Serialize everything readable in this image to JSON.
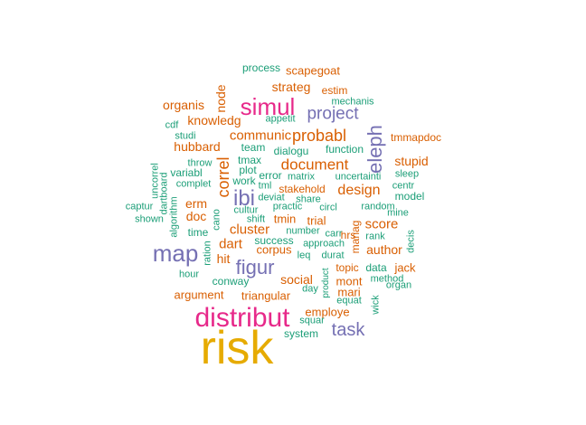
{
  "palette": {
    "teal": "#1b9e77",
    "orange": "#d95f02",
    "purple": "#7570b3",
    "magenta": "#e7298a",
    "gold": "#e6ab02"
  },
  "words": [
    {
      "text": "risk",
      "color": "gold"
    },
    {
      "text": "distribut",
      "color": "magenta"
    },
    {
      "text": "simul",
      "color": "magenta"
    },
    {
      "text": "map",
      "color": "purple"
    },
    {
      "text": "figur",
      "color": "purple"
    },
    {
      "text": "ibi",
      "color": "purple"
    },
    {
      "text": "project",
      "color": "purple"
    },
    {
      "text": "eleph",
      "color": "purple"
    },
    {
      "text": "task",
      "color": "purple"
    },
    {
      "text": "probabl",
      "color": "orange"
    },
    {
      "text": "document",
      "color": "orange"
    },
    {
      "text": "design",
      "color": "orange"
    },
    {
      "text": "correl",
      "color": "orange"
    },
    {
      "text": "strateg",
      "color": "orange"
    },
    {
      "text": "organis",
      "color": "orange"
    },
    {
      "text": "knowledg",
      "color": "orange"
    },
    {
      "text": "communic",
      "color": "orange"
    },
    {
      "text": "hubbard",
      "color": "orange"
    },
    {
      "text": "stupid",
      "color": "orange"
    },
    {
      "text": "cluster",
      "color": "orange"
    },
    {
      "text": "dart",
      "color": "orange"
    },
    {
      "text": "score",
      "color": "orange"
    },
    {
      "text": "author",
      "color": "orange"
    },
    {
      "text": "social",
      "color": "orange"
    },
    {
      "text": "doc",
      "color": "orange"
    },
    {
      "text": "erm",
      "color": "orange"
    },
    {
      "text": "hit",
      "color": "orange"
    },
    {
      "text": "argument",
      "color": "orange"
    },
    {
      "text": "triangular",
      "color": "orange"
    },
    {
      "text": "employe",
      "color": "orange"
    },
    {
      "text": "mont",
      "color": "orange"
    },
    {
      "text": "mari",
      "color": "orange"
    },
    {
      "text": "jack",
      "color": "orange"
    },
    {
      "text": "trial",
      "color": "orange"
    },
    {
      "text": "tmin",
      "color": "orange"
    },
    {
      "text": "corpus",
      "color": "orange"
    },
    {
      "text": "node",
      "color": "orange"
    },
    {
      "text": "estim",
      "color": "orange"
    },
    {
      "text": "scapegoat",
      "color": "orange"
    },
    {
      "text": "tmmapdoc",
      "color": "orange"
    },
    {
      "text": "stakehold",
      "color": "orange"
    },
    {
      "text": "topic",
      "color": "orange"
    },
    {
      "text": "hrs",
      "color": "orange"
    },
    {
      "text": "manag",
      "color": "orange"
    },
    {
      "text": "process",
      "color": "teal"
    },
    {
      "text": "mechanis",
      "color": "teal"
    },
    {
      "text": "appetit",
      "color": "teal"
    },
    {
      "text": "cdf",
      "color": "teal"
    },
    {
      "text": "studi",
      "color": "teal"
    },
    {
      "text": "team",
      "color": "teal"
    },
    {
      "text": "dialogu",
      "color": "teal"
    },
    {
      "text": "function",
      "color": "teal"
    },
    {
      "text": "throw",
      "color": "teal"
    },
    {
      "text": "tmax",
      "color": "teal"
    },
    {
      "text": "plot",
      "color": "teal"
    },
    {
      "text": "error",
      "color": "teal"
    },
    {
      "text": "matrix",
      "color": "teal"
    },
    {
      "text": "uncertainti",
      "color": "teal"
    },
    {
      "text": "sleep",
      "color": "teal"
    },
    {
      "text": "variabl",
      "color": "teal"
    },
    {
      "text": "work",
      "color": "teal"
    },
    {
      "text": "tml",
      "color": "teal"
    },
    {
      "text": "centr",
      "color": "teal"
    },
    {
      "text": "uncorrel",
      "color": "teal"
    },
    {
      "text": "complet",
      "color": "teal"
    },
    {
      "text": "deviat",
      "color": "teal"
    },
    {
      "text": "share",
      "color": "teal"
    },
    {
      "text": "model",
      "color": "teal"
    },
    {
      "text": "dartboard",
      "color": "teal"
    },
    {
      "text": "captur",
      "color": "teal"
    },
    {
      "text": "cultur",
      "color": "teal"
    },
    {
      "text": "practic",
      "color": "teal"
    },
    {
      "text": "circl",
      "color": "teal"
    },
    {
      "text": "random",
      "color": "teal"
    },
    {
      "text": "shown",
      "color": "teal"
    },
    {
      "text": "algorithm",
      "color": "teal"
    },
    {
      "text": "cano",
      "color": "teal"
    },
    {
      "text": "shift",
      "color": "teal"
    },
    {
      "text": "mine",
      "color": "teal"
    },
    {
      "text": "time",
      "color": "teal"
    },
    {
      "text": "success",
      "color": "teal"
    },
    {
      "text": "number",
      "color": "teal"
    },
    {
      "text": "carr",
      "color": "teal"
    },
    {
      "text": "approach",
      "color": "teal"
    },
    {
      "text": "rank",
      "color": "teal"
    },
    {
      "text": "leq",
      "color": "teal"
    },
    {
      "text": "durat",
      "color": "teal"
    },
    {
      "text": "decis",
      "color": "teal"
    },
    {
      "text": "ration",
      "color": "teal"
    },
    {
      "text": "data",
      "color": "teal"
    },
    {
      "text": "hour",
      "color": "teal"
    },
    {
      "text": "conway",
      "color": "teal"
    },
    {
      "text": "product",
      "color": "teal"
    },
    {
      "text": "method",
      "color": "teal"
    },
    {
      "text": "organ",
      "color": "teal"
    },
    {
      "text": "day",
      "color": "teal"
    },
    {
      "text": "equat",
      "color": "teal"
    },
    {
      "text": "wick",
      "color": "teal"
    },
    {
      "text": "squar",
      "color": "teal"
    },
    {
      "text": "system",
      "color": "teal"
    }
  ]
}
